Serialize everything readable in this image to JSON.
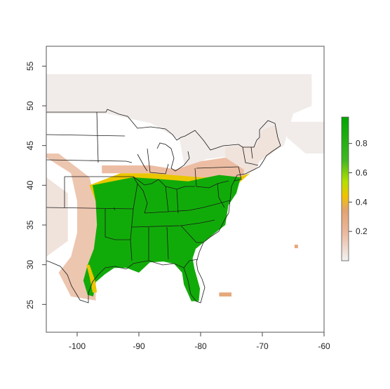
{
  "chart_data": {
    "type": "heatmap",
    "title": "",
    "xlabel": "",
    "ylabel": "",
    "xlim": [
      -105,
      -60
    ],
    "ylim": [
      21.5,
      57.5
    ],
    "x_ticks": [
      -100,
      -90,
      -80,
      -70,
      -60
    ],
    "y_ticks": [
      25,
      30,
      35,
      40,
      45,
      50,
      55
    ],
    "x_tick_labels": [
      "-100",
      "-90",
      "-80",
      "-70",
      "-60"
    ],
    "y_tick_labels": [
      "25",
      "30",
      "35",
      "40",
      "45",
      "50",
      "55"
    ],
    "colorbar": {
      "range": [
        0.0,
        0.98
      ],
      "ticks": [
        0.2,
        0.4,
        0.6,
        0.8
      ],
      "tick_labels": [
        "0.2",
        "0.4",
        "0.6",
        "0.8"
      ],
      "colors": [
        "#f2f2f2",
        "#ebb89c",
        "#e3a36f",
        "#f0c300",
        "#b4e000",
        "#40b820",
        "#00a600"
      ]
    },
    "grid": false,
    "legend": "right",
    "regions": [
      {
        "name": "canada",
        "value": 0.02,
        "poly": [
          [
            -105,
            54
          ],
          [
            -62,
            54
          ],
          [
            -62,
            50
          ],
          [
            -65,
            49
          ],
          [
            -66.5,
            45
          ],
          [
            -70,
            43.5
          ],
          [
            -76,
            43.6
          ],
          [
            -79,
            43.3
          ],
          [
            -82.5,
            42
          ],
          [
            -83.4,
            45.7
          ],
          [
            -88,
            47.8
          ],
          [
            -95,
            49
          ],
          [
            -105,
            49
          ]
        ]
      },
      {
        "name": "canada-islands",
        "value": 0.02,
        "poly": [
          [
            -66,
            48
          ],
          [
            -60,
            48
          ],
          [
            -60,
            44
          ],
          [
            -63,
            44
          ],
          [
            -66,
            46
          ]
        ]
      },
      {
        "name": "new-england",
        "value": 0.05,
        "poly": [
          [
            -76,
            44.8
          ],
          [
            -73,
            45
          ],
          [
            -71,
            45
          ],
          [
            -70,
            47
          ],
          [
            -68,
            47.5
          ],
          [
            -67,
            45
          ],
          [
            -68.5,
            44
          ],
          [
            -70.5,
            43
          ],
          [
            -71,
            42
          ],
          [
            -73.7,
            41
          ],
          [
            -75,
            41.5
          ],
          [
            -76,
            42.5
          ]
        ]
      },
      {
        "name": "great-lakes-fringe",
        "value": 0.18,
        "poly": [
          [
            -96,
            42.5
          ],
          [
            -88,
            42.5
          ],
          [
            -84,
            42
          ],
          [
            -80,
            43
          ],
          [
            -76,
            43.5
          ],
          [
            -73,
            42
          ],
          [
            -73,
            41
          ],
          [
            -80,
            40.5
          ],
          [
            -88,
            41.5
          ],
          [
            -96,
            41.5
          ]
        ]
      },
      {
        "name": "southwest-dry",
        "value": 0.15,
        "poly": [
          [
            -105,
            43.5
          ],
          [
            -101,
            41.5
          ],
          [
            -100,
            38
          ],
          [
            -100,
            34
          ],
          [
            -101,
            31
          ],
          [
            -103,
            29
          ],
          [
            -101,
            26
          ],
          [
            -97,
            25.5
          ],
          [
            -97,
            29
          ],
          [
            -96,
            31
          ],
          [
            -96.5,
            35
          ],
          [
            -97,
            38
          ],
          [
            -98,
            41
          ],
          [
            -103,
            44
          ],
          [
            -105,
            44
          ]
        ]
      },
      {
        "name": "dry-west-edge",
        "value": 0.05,
        "poly": [
          [
            -105,
            41
          ],
          [
            -101.5,
            39
          ],
          [
            -101.5,
            33
          ],
          [
            -105,
            31
          ]
        ]
      },
      {
        "name": "east-transition",
        "value": 0.45,
        "poly": [
          [
            -98,
            40
          ],
          [
            -93,
            41.5
          ],
          [
            -88,
            41.5
          ],
          [
            -80,
            41
          ],
          [
            -74,
            41
          ],
          [
            -72,
            41.5
          ],
          [
            -73.5,
            40.5
          ],
          [
            -76,
            38.5
          ],
          [
            -97,
            38
          ]
        ]
      },
      {
        "name": "core-suitable",
        "value": 0.9,
        "poly": [
          [
            -97.5,
            40
          ],
          [
            -91,
            41
          ],
          [
            -87,
            40.8
          ],
          [
            -82,
            40.5
          ],
          [
            -77,
            41.3
          ],
          [
            -73.5,
            41
          ],
          [
            -74.2,
            39
          ],
          [
            -75.5,
            37.5
          ],
          [
            -76,
            35
          ],
          [
            -78,
            33.8
          ],
          [
            -80.8,
            32
          ],
          [
            -81.3,
            30.8
          ],
          [
            -81,
            29.5
          ],
          [
            -80.1,
            27
          ],
          [
            -80.3,
            25.4
          ],
          [
            -81.5,
            25.4
          ],
          [
            -82.7,
            27.5
          ],
          [
            -83,
            29
          ],
          [
            -84.3,
            30.1
          ],
          [
            -86,
            30.4
          ],
          [
            -88.2,
            30.3
          ],
          [
            -90,
            29
          ],
          [
            -92,
            29.6
          ],
          [
            -94,
            29.6
          ],
          [
            -95.5,
            28.8
          ],
          [
            -97,
            27.8
          ],
          [
            -97.4,
            26
          ],
          [
            -98.3,
            26.2
          ],
          [
            -99,
            28
          ],
          [
            -98.3,
            30
          ],
          [
            -97.3,
            32
          ],
          [
            -96.8,
            35
          ],
          [
            -97,
            38
          ]
        ]
      },
      {
        "name": "texas-coast-yellow",
        "value": 0.45,
        "poly": [
          [
            -98.5,
            30
          ],
          [
            -98,
            28.5
          ],
          [
            -97.5,
            26.5
          ],
          [
            -96.8,
            26.5
          ],
          [
            -97.1,
            28
          ],
          [
            -98,
            30
          ]
        ]
      },
      {
        "name": "florida-keys",
        "value": 0.3,
        "poly": [
          [
            -77,
            26.5
          ],
          [
            -75,
            26.5
          ],
          [
            -75,
            26
          ],
          [
            -77,
            26
          ]
        ]
      }
    ],
    "dots": [
      {
        "lon": -64.5,
        "lat": 32.3,
        "value": 0.3
      }
    ]
  }
}
